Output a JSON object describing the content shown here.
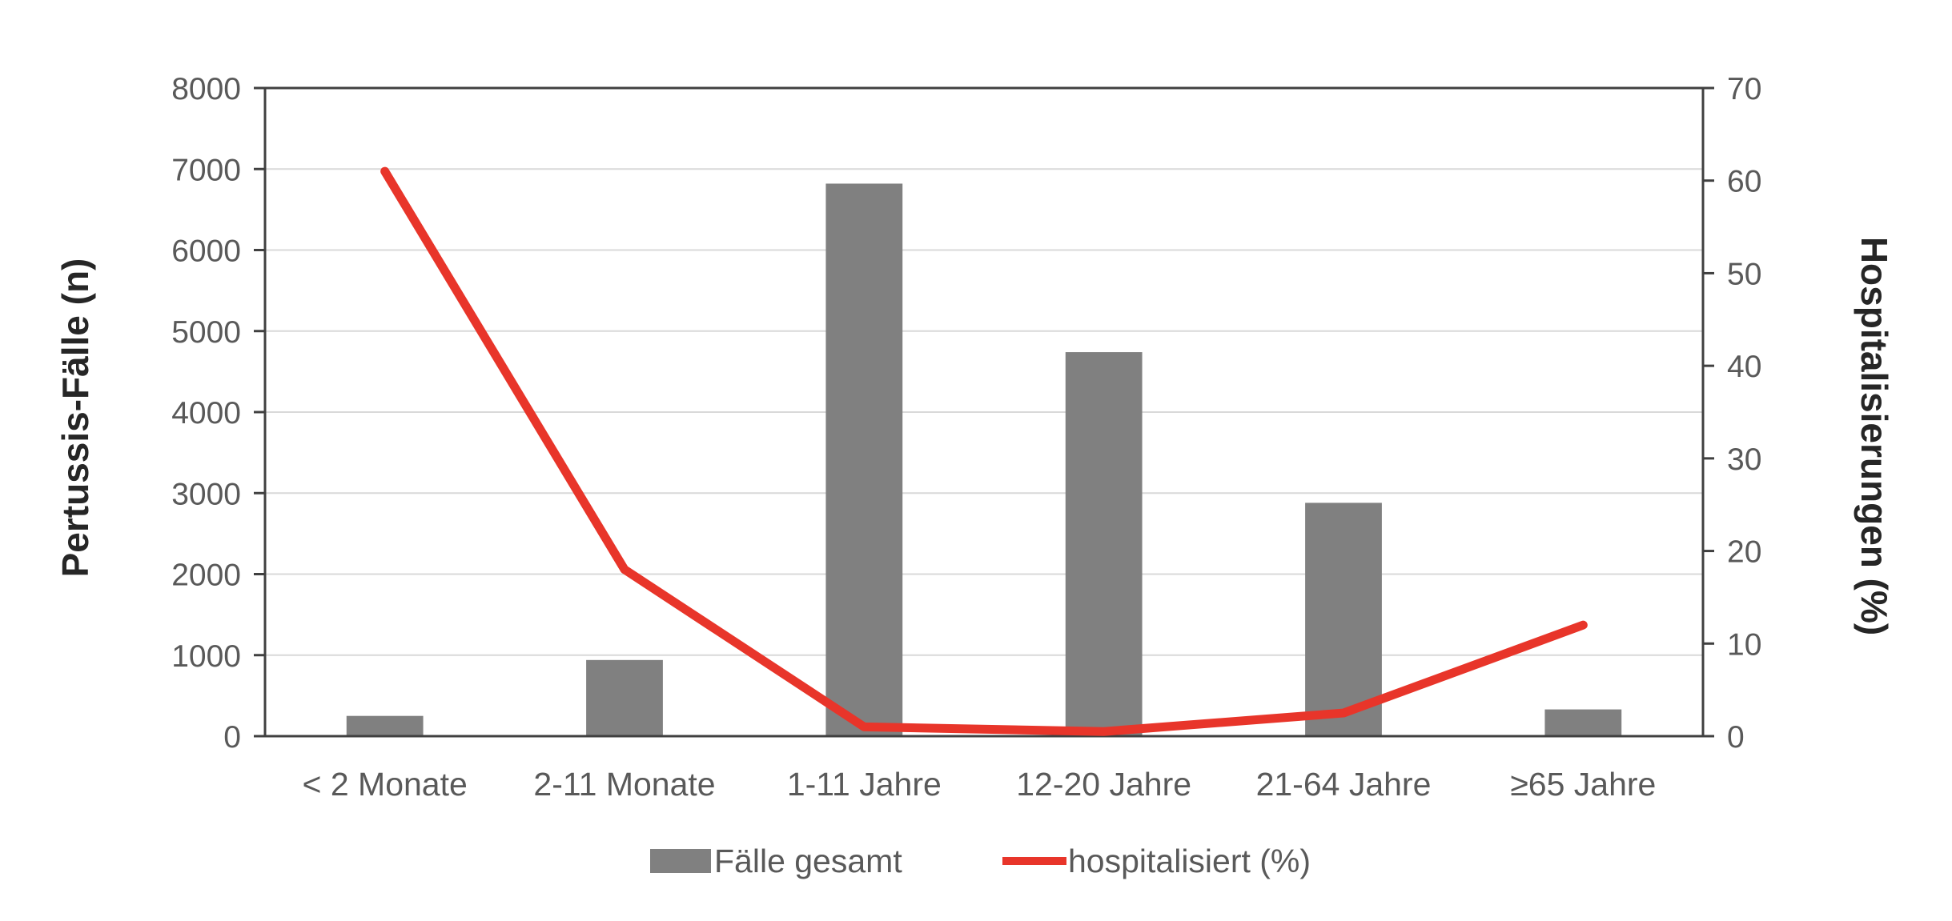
{
  "chart_data": {
    "type": "bar",
    "title": "",
    "categories": [
      "< 2 Monate",
      "2-11 Monate",
      "1-11 Jahre",
      "12-20 Jahre",
      "21-64 Jahre",
      "≥65 Jahre"
    ],
    "series": [
      {
        "name": "Fälle gesamt",
        "type": "bar",
        "axis": "left",
        "color": "#808080",
        "values": [
          250,
          940,
          6820,
          4740,
          2880,
          330
        ]
      },
      {
        "name": "hospitalisiert (%)",
        "type": "line",
        "axis": "right",
        "color": "#e8352a",
        "values": [
          61,
          18,
          1,
          0.5,
          2.5,
          12
        ]
      }
    ],
    "ylabel": "Pertussis-Fälle  (n)",
    "y2label": "Hospitalisierungen  (%)",
    "ylim": [
      0,
      8000
    ],
    "y2lim": [
      0,
      70
    ],
    "yticks": [
      "0",
      "1000",
      "2000",
      "3000",
      "4000",
      "5000",
      "6000",
      "7000",
      "8000"
    ],
    "y2ticks": [
      "0",
      "10",
      "20",
      "30",
      "40",
      "50",
      "60",
      "70"
    ],
    "grid": true,
    "legend_position": "bottom"
  }
}
